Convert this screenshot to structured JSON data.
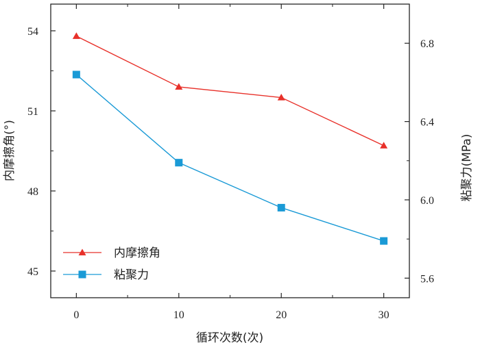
{
  "chart_data": {
    "type": "line",
    "xlabel": "循环次数(次)",
    "ylabel_left": "内摩擦角(°)",
    "ylabel_right": "粘聚力(MPa)",
    "x": [
      0,
      10,
      20,
      30
    ],
    "x_ticks": [
      "0",
      "10",
      "20",
      "30"
    ],
    "xlim": [
      -2.5,
      32.5
    ],
    "ylim_left": [
      44,
      55
    ],
    "ylim_right": [
      5.5,
      7.0
    ],
    "yticks_left": [
      "45",
      "48",
      "51",
      "54"
    ],
    "yticks_right": [
      "5.6",
      "6.0",
      "6.4",
      "6.8"
    ],
    "grid": false,
    "legend_position": "bottom-left",
    "series": [
      {
        "name": "内摩擦角",
        "axis": "left",
        "marker": "triangle",
        "color": "#e8312a",
        "values": [
          53.8,
          51.9,
          51.5,
          49.7
        ]
      },
      {
        "name": "粘聚力",
        "axis": "right",
        "marker": "square",
        "color": "#1a9ad6",
        "values": [
          6.64,
          6.19,
          5.96,
          5.79
        ]
      }
    ]
  }
}
